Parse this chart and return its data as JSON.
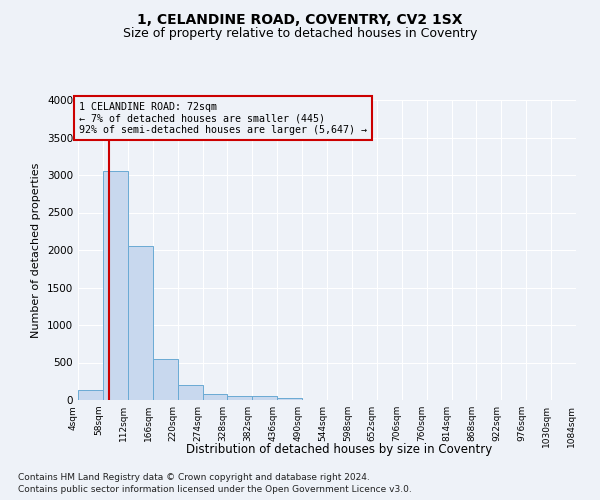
{
  "title": "1, CELANDINE ROAD, COVENTRY, CV2 1SX",
  "subtitle": "Size of property relative to detached houses in Coventry",
  "xlabel": "Distribution of detached houses by size in Coventry",
  "ylabel": "Number of detached properties",
  "footer_line1": "Contains HM Land Registry data © Crown copyright and database right 2024.",
  "footer_line2": "Contains public sector information licensed under the Open Government Licence v3.0.",
  "bin_edges": [
    4,
    58,
    112,
    166,
    220,
    274,
    328,
    382,
    436,
    490,
    544,
    598,
    652,
    706,
    760,
    814,
    868,
    922,
    976,
    1030,
    1084
  ],
  "bar_heights": [
    130,
    3050,
    2050,
    550,
    200,
    80,
    60,
    50,
    30,
    0,
    0,
    0,
    0,
    0,
    0,
    0,
    0,
    0,
    0,
    0
  ],
  "bar_color": "#c8d8ee",
  "bar_edge_color": "#6aaad4",
  "vline_x": 72,
  "vline_color": "#cc0000",
  "annotation_line1": "1 CELANDINE ROAD: 72sqm",
  "annotation_line2": "← 7% of detached houses are smaller (445)",
  "annotation_line3": "92% of semi-detached houses are larger (5,647) →",
  "annotation_box_color": "#cc0000",
  "ylim": [
    0,
    4000
  ],
  "yticks": [
    0,
    500,
    1000,
    1500,
    2000,
    2500,
    3000,
    3500,
    4000
  ],
  "background_color": "#eef2f8",
  "grid_color": "#ffffff",
  "title_fontsize": 10,
  "subtitle_fontsize": 9
}
